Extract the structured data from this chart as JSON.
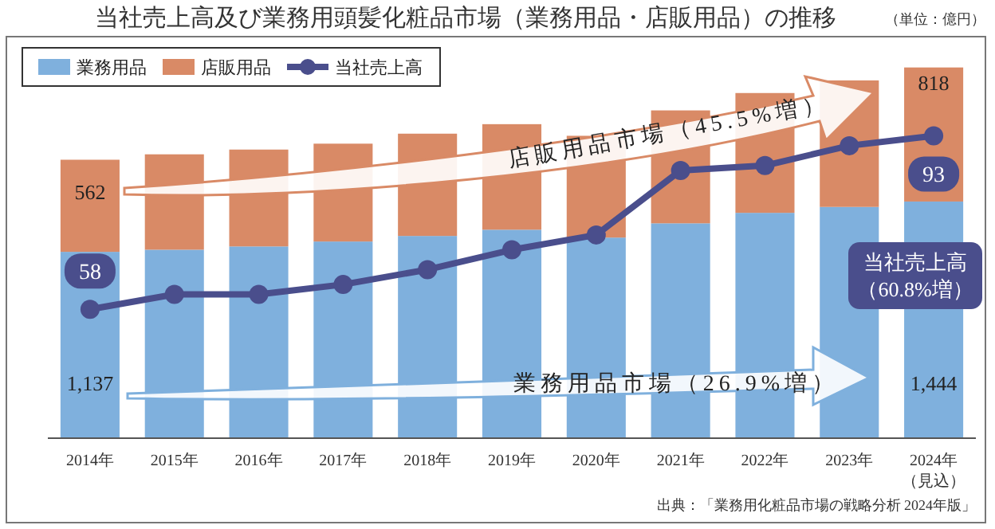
{
  "chart_data": {
    "type": "bar",
    "title": "当社売上高及び業務用頭髪化粧品市場（業務用品・店販用品）の推移",
    "subtitle": "（単位：億円）",
    "categories": [
      "2014年",
      "2015年",
      "2016年",
      "2017年",
      "2018年",
      "2019年",
      "2020年",
      "2021年",
      "2022年",
      "2023年",
      "2024年（見込）"
    ],
    "stacked": true,
    "ylim": [
      0,
      2450
    ],
    "y2lim": [
      32,
      113
    ],
    "tick_labels": "x",
    "legend": "top left",
    "series": [
      {
        "name": "業務用品",
        "color": "#7fb0dd",
        "values": [
          1137,
          1150,
          1170,
          1200,
          1234,
          1272,
          1224,
          1311,
          1375,
          1411,
          1444
        ],
        "value_labels": [
          "1,137",
          null,
          null,
          null,
          null,
          null,
          null,
          null,
          null,
          null,
          "1,444"
        ]
      },
      {
        "name": "店販用品",
        "color": "#d98a66",
        "values": [
          562,
          582,
          591,
          597,
          624,
          644,
          621,
          689,
          731,
          772,
          818
        ],
        "value_labels": [
          "562",
          null,
          null,
          null,
          null,
          null,
          null,
          null,
          null,
          null,
          "818"
        ]
      },
      {
        "name": "当社売上高",
        "type": "line",
        "axis": "y2",
        "color": "#4a4e8c",
        "marker": "circle",
        "values": [
          58,
          61,
          61,
          63,
          66,
          70,
          73,
          86,
          87,
          91,
          93
        ],
        "value_labels": [
          "58",
          null,
          null,
          null,
          null,
          null,
          null,
          null,
          null,
          null,
          "93"
        ]
      }
    ],
    "annotations": [
      "店販用品市場（45.5%増）",
      "業務用品市場（26.9%増）",
      "当社売上高（60.8%増）",
      "出典：「業務用化粧品市場の戦略分析 2024年版」"
    ]
  }
}
